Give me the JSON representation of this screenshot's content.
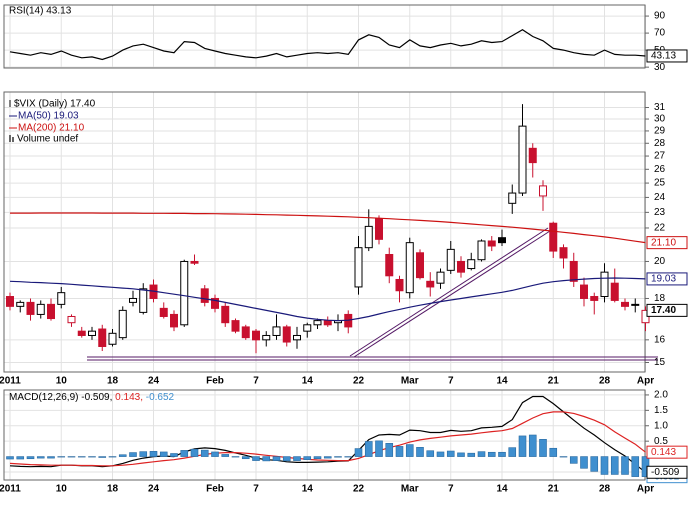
{
  "chart_data": [
    {
      "type": "line",
      "title": "RSI(14) 43.13",
      "series": [
        {
          "name": "RSI(14)",
          "color": "#000000",
          "last_box": true,
          "values": [
            48,
            46,
            44,
            47,
            45,
            49,
            44,
            41,
            42,
            39,
            43,
            50,
            55,
            57,
            53,
            49,
            47,
            60,
            59,
            52,
            49,
            46,
            44,
            42,
            41,
            43,
            46,
            42,
            44,
            46,
            47,
            46,
            47,
            45,
            62,
            68,
            65,
            56,
            53,
            62,
            55,
            53,
            56,
            58,
            55,
            57,
            61,
            59,
            60,
            67,
            74,
            66,
            61,
            52,
            50,
            47,
            45,
            44,
            50,
            45,
            44,
            44,
            43.13
          ]
        }
      ],
      "ylim": [
        29,
        103
      ],
      "yticks": [
        30,
        50,
        70,
        90
      ],
      "grid": true
    },
    {
      "type": "candlestick",
      "title": "$VIX (Daily) 17.40",
      "note": "Volume undef",
      "log": true,
      "grid": true,
      "categories": [
        "2011",
        null,
        null,
        null,
        null,
        "10",
        null,
        null,
        null,
        null,
        "18",
        null,
        null,
        null,
        "24",
        null,
        null,
        null,
        null,
        null,
        "Feb",
        null,
        null,
        null,
        "7",
        null,
        null,
        null,
        null,
        "14",
        null,
        null,
        null,
        null,
        "22",
        null,
        null,
        null,
        null,
        "Mar",
        null,
        null,
        null,
        "7",
        null,
        null,
        null,
        null,
        "14",
        null,
        null,
        null,
        null,
        "21",
        null,
        null,
        null,
        null,
        "28",
        null,
        null,
        null,
        "Apr"
      ],
      "open": [
        18.1,
        17.6,
        17.8,
        17.2,
        17.7,
        17.7,
        16.8,
        16.4,
        16.2,
        16.5,
        15.8,
        16.1,
        17.8,
        17.3,
        18.7,
        17.5,
        17.2,
        16.7,
        20.0,
        18.5,
        18.0,
        17.6,
        16.9,
        16.6,
        16.4,
        16.0,
        16.2,
        16.6,
        16.0,
        16.4,
        16.7,
        16.9,
        16.8,
        17.2,
        18.6,
        20.8,
        22.6,
        20.4,
        19.0,
        18.3,
        20.5,
        18.9,
        18.8,
        19.5,
        20.0,
        19.6,
        20.1,
        21.2,
        21.4,
        23.6,
        24.3,
        27.6,
        24.1,
        22.3,
        20.8,
        20.0,
        18.7,
        18.1,
        18.1,
        18.8,
        17.8,
        17.7,
        16.8
      ],
      "high": [
        18.3,
        17.9,
        18.0,
        17.9,
        18.0,
        18.6,
        17.2,
        16.6,
        16.6,
        16.7,
        16.5,
        17.6,
        18.4,
        18.8,
        19.0,
        17.8,
        17.4,
        20.1,
        20.4,
        18.7,
        18.2,
        17.8,
        17.0,
        16.7,
        16.5,
        16.4,
        17.2,
        16.7,
        16.6,
        16.8,
        17.0,
        17.1,
        17.2,
        17.4,
        21.5,
        23.2,
        22.8,
        20.8,
        19.2,
        21.4,
        20.7,
        19.4,
        19.6,
        21.2,
        20.3,
        20.5,
        21.3,
        21.5,
        21.9,
        24.9,
        31.3,
        28.0,
        25.2,
        22.4,
        21.0,
        20.5,
        19.1,
        18.3,
        19.9,
        19.6,
        18.0,
        18.0,
        17.6
      ],
      "low": [
        17.4,
        17.3,
        16.9,
        17.0,
        16.9,
        17.5,
        16.6,
        16.1,
        16.0,
        15.5,
        15.7,
        16.0,
        17.6,
        17.2,
        17.8,
        17.0,
        16.4,
        16.6,
        19.8,
        17.6,
        17.3,
        16.6,
        16.3,
        16.0,
        15.4,
        15.7,
        16.0,
        15.7,
        15.6,
        16.1,
        16.5,
        16.6,
        16.4,
        16.3,
        18.2,
        20.6,
        21.0,
        18.8,
        17.8,
        18.0,
        19.0,
        18.1,
        18.5,
        19.3,
        19.1,
        19.5,
        20.0,
        20.6,
        20.9,
        22.9,
        24.1,
        25.4,
        23.1,
        20.2,
        19.6,
        18.6,
        17.6,
        17.2,
        17.8,
        17.8,
        17.4,
        17.3,
        16.4
      ],
      "close": [
        17.6,
        17.8,
        17.2,
        17.7,
        17.0,
        18.3,
        17.1,
        16.2,
        16.4,
        15.7,
        16.3,
        17.4,
        18.0,
        18.5,
        18.0,
        17.1,
        16.6,
        20.0,
        19.9,
        17.8,
        17.5,
        16.8,
        16.4,
        16.1,
        16.0,
        16.2,
        16.6,
        15.9,
        16.2,
        16.7,
        16.9,
        16.7,
        16.9,
        16.6,
        20.8,
        22.1,
        21.3,
        19.2,
        18.4,
        21.1,
        19.1,
        18.6,
        19.4,
        20.7,
        19.4,
        20.1,
        21.2,
        20.9,
        21.1,
        24.3,
        29.4,
        26.5,
        24.8,
        20.6,
        20.2,
        18.9,
        18.0,
        17.9,
        19.4,
        17.9,
        17.6,
        17.7,
        17.4
      ],
      "value_labels": [
        null,
        null,
        null,
        null,
        null,
        null,
        null,
        null,
        null,
        null,
        null,
        null,
        null,
        null,
        null,
        null,
        null,
        null,
        null,
        null,
        null,
        null,
        null,
        null,
        null,
        null,
        null,
        null,
        null,
        null,
        null,
        null,
        null,
        null,
        null,
        null,
        null,
        null,
        null,
        null,
        null,
        null,
        null,
        null,
        null,
        null,
        null,
        null,
        null,
        null,
        null,
        null,
        null,
        null,
        null,
        null,
        null,
        null,
        null,
        null,
        null,
        null,
        "17.40"
      ],
      "series": [
        {
          "name": "MA(50) 19.03",
          "color": "#1a1a7a",
          "last_box": true,
          "values": [
            18.9,
            18.88,
            18.85,
            18.83,
            18.8,
            18.78,
            18.74,
            18.7,
            18.66,
            18.62,
            18.58,
            18.54,
            18.5,
            18.44,
            18.38,
            18.3,
            18.22,
            18.14,
            18.06,
            17.98,
            17.9,
            17.8,
            17.7,
            17.6,
            17.5,
            17.4,
            17.3,
            17.2,
            17.1,
            17.02,
            16.96,
            16.92,
            16.9,
            16.92,
            17.0,
            17.1,
            17.22,
            17.34,
            17.45,
            17.56,
            17.66,
            17.75,
            17.84,
            17.92,
            18.0,
            18.08,
            18.16,
            18.24,
            18.32,
            18.42,
            18.55,
            18.68,
            18.8,
            18.88,
            18.94,
            18.98,
            19.02,
            19.05,
            19.07,
            19.08,
            19.07,
            19.05,
            19.03
          ]
        },
        {
          "name": "MA(200) 21.10",
          "color": "#cc1111",
          "last_box": true,
          "values": [
            22.95,
            22.95,
            22.95,
            22.96,
            22.96,
            22.96,
            22.96,
            22.96,
            22.96,
            22.95,
            22.95,
            22.95,
            22.95,
            22.94,
            22.94,
            22.94,
            22.93,
            22.93,
            22.92,
            22.92,
            22.91,
            22.9,
            22.89,
            22.88,
            22.87,
            22.85,
            22.84,
            22.82,
            22.81,
            22.79,
            22.77,
            22.75,
            22.73,
            22.71,
            22.68,
            22.65,
            22.62,
            22.59,
            22.55,
            22.52,
            22.48,
            22.44,
            22.4,
            22.35,
            22.3,
            22.25,
            22.2,
            22.15,
            22.1,
            22.05,
            21.99,
            21.93,
            21.87,
            21.8,
            21.73,
            21.66,
            21.59,
            21.52,
            21.45,
            21.37,
            21.28,
            21.19,
            21.1
          ],
          "value_labels": [
            null,
            null,
            null,
            null,
            null,
            null,
            null,
            null,
            null,
            null,
            null,
            null,
            null,
            null,
            null,
            null,
            null,
            null,
            null,
            null,
            null,
            null,
            null,
            null,
            null,
            null,
            null,
            null,
            null,
            null,
            null,
            null,
            null,
            null,
            null,
            null,
            null,
            null,
            null,
            null,
            null,
            null,
            null,
            null,
            null,
            null,
            null,
            null,
            null,
            null,
            null,
            null,
            null,
            null,
            null,
            null,
            null,
            null,
            null,
            null,
            null,
            null,
            "21.10"
          ]
        }
      ],
      "ylim": [
        14.6,
        32.4
      ],
      "yticks": [
        15,
        16,
        18,
        20,
        22,
        23,
        24,
        25,
        26,
        27,
        28,
        29,
        30,
        31
      ]
    },
    {
      "type": "line",
      "grid": true,
      "categories": [
        "2011",
        null,
        null,
        null,
        null,
        "10",
        null,
        null,
        null,
        null,
        "18",
        null,
        null,
        null,
        "24",
        null,
        null,
        null,
        null,
        null,
        "Feb",
        null,
        null,
        null,
        "7",
        null,
        null,
        null,
        null,
        "14",
        null,
        null,
        null,
        null,
        "22",
        null,
        null,
        null,
        null,
        "Mar",
        null,
        null,
        null,
        "7",
        null,
        null,
        null,
        null,
        "14",
        null,
        null,
        null,
        null,
        "21",
        null,
        null,
        null,
        null,
        "28",
        null,
        null,
        null,
        "Apr"
      ],
      "series": [
        {
          "name": "MACD(12,26,9) -0.509,",
          "color": "#000000",
          "last_box": true,
          "values": [
            -0.3,
            -0.32,
            -0.33,
            -0.32,
            -0.33,
            -0.28,
            -0.28,
            -0.3,
            -0.3,
            -0.33,
            -0.3,
            -0.22,
            -0.12,
            -0.05,
            0.0,
            0.02,
            0.0,
            0.15,
            0.25,
            0.28,
            0.26,
            0.2,
            0.12,
            0.04,
            -0.05,
            -0.1,
            -0.12,
            -0.17,
            -0.19,
            -0.19,
            -0.18,
            -0.17,
            -0.15,
            -0.14,
            0.2,
            0.55,
            0.7,
            0.72,
            0.7,
            0.86,
            0.84,
            0.78,
            0.78,
            0.85,
            0.82,
            0.84,
            0.93,
            0.95,
            0.98,
            1.2,
            1.75,
            1.95,
            1.95,
            1.72,
            1.45,
            1.18,
            0.92,
            0.7,
            0.45,
            0.22,
            0.02,
            -0.25,
            -0.509
          ]
        },
        {
          "name": "0.143,",
          "color": "#dd2222",
          "last_box": true,
          "values": [
            -0.22,
            -0.24,
            -0.26,
            -0.27,
            -0.28,
            -0.28,
            -0.28,
            -0.29,
            -0.29,
            -0.3,
            -0.3,
            -0.28,
            -0.25,
            -0.21,
            -0.17,
            -0.13,
            -0.1,
            -0.05,
            0.01,
            0.07,
            0.11,
            0.13,
            0.13,
            0.11,
            0.08,
            0.04,
            0.01,
            -0.03,
            -0.06,
            -0.09,
            -0.11,
            -0.12,
            -0.13,
            -0.13,
            -0.06,
            0.06,
            0.19,
            0.29,
            0.37,
            0.47,
            0.54,
            0.59,
            0.63,
            0.67,
            0.7,
            0.73,
            0.77,
            0.81,
            0.84,
            0.91,
            1.08,
            1.25,
            1.39,
            1.45,
            1.45,
            1.4,
            1.3,
            1.18,
            1.03,
            0.8,
            0.6,
            0.4,
            0.143
          ]
        },
        {
          "name": "-0.652",
          "color": "#3f8fcf",
          "kind": "bar",
          "last_box": true,
          "values": [
            -0.08,
            -0.08,
            -0.07,
            -0.05,
            -0.05,
            0.0,
            0.0,
            -0.01,
            -0.01,
            -0.03,
            0.0,
            0.06,
            0.13,
            0.16,
            0.17,
            0.15,
            0.1,
            0.2,
            0.24,
            0.21,
            0.15,
            0.07,
            -0.01,
            -0.07,
            -0.13,
            -0.14,
            -0.13,
            -0.14,
            -0.13,
            -0.1,
            -0.07,
            -0.05,
            -0.02,
            -0.01,
            0.26,
            0.49,
            0.51,
            0.43,
            0.33,
            0.39,
            0.3,
            0.19,
            0.15,
            0.18,
            0.12,
            0.11,
            0.16,
            0.14,
            0.14,
            0.29,
            0.67,
            0.7,
            0.56,
            0.27,
            0.0,
            -0.22,
            -0.38,
            -0.48,
            -0.58,
            -0.58,
            -0.58,
            -0.65,
            -0.652
          ]
        }
      ],
      "ylim": [
        -0.76,
        2.16
      ],
      "yticks": [
        {
          "value": 2,
          "label": "2.0"
        },
        1.5,
        {
          "value": 1,
          "label": "1.0"
        },
        0.5,
        -0.5
      ]
    }
  ]
}
